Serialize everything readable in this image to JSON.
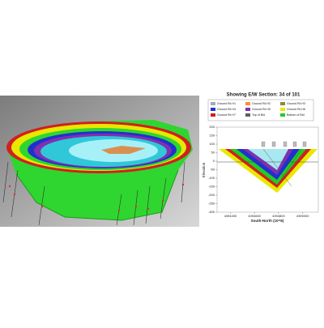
{
  "section": {
    "title": "Showing E/W Section: 34 of 101",
    "ylabel": "Elevation",
    "xlabel": "South-North (10^6)",
    "ylim": [
      -300,
      200
    ],
    "yticks": [
      200,
      150,
      100,
      50,
      0,
      -50,
      -100,
      -150,
      -200,
      -250,
      -300
    ],
    "xlim": [
      4394290,
      4395130
    ],
    "xticks": [
      4394400,
      4394600,
      4394800,
      4395000
    ],
    "legend": [
      {
        "name": "Ground Rk H1",
        "color": "#a8a8b8"
      },
      {
        "name": "Ground Rk H2",
        "color": "#ff9030"
      },
      {
        "name": "Ground Rk H3",
        "color": "#8a8a3a"
      },
      {
        "name": "Ground Rk H4",
        "color": "#2030d0"
      },
      {
        "name": "Ground Rk H5",
        "color": "#8030b0"
      },
      {
        "name": "Ground Rk H6",
        "color": "#e8e800"
      },
      {
        "name": "Ground Rk H7",
        "color": "#d02020"
      },
      {
        "name": "Top of Bld",
        "color": "#606060"
      },
      {
        "name": "Bottom of Bld",
        "color": "#22cc22"
      }
    ]
  }
}
